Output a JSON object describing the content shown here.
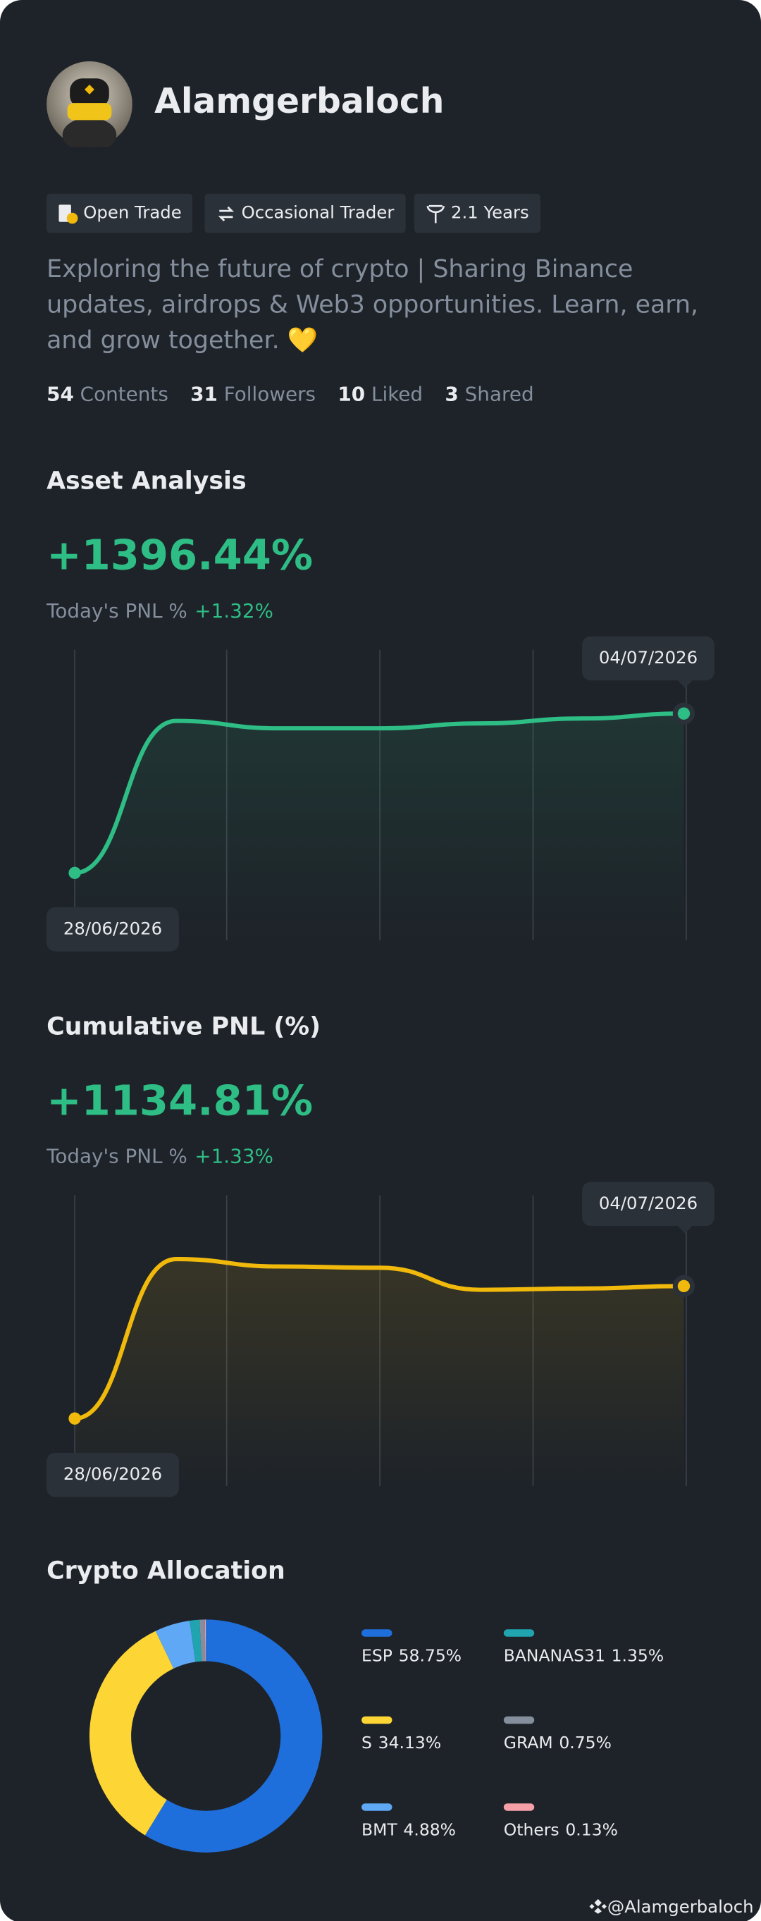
{
  "profile": {
    "name": "Alamgerbaloch",
    "tags": [
      "Open Trade",
      "Occasional Trader",
      "2.1 Years"
    ],
    "bio": "Exploring the future of crypto | Sharing Binance updates, airdrops & Web3 opportunities. Learn, earn, and grow together. 💛",
    "stats": [
      {
        "count": 54,
        "label": "Contents"
      },
      {
        "count": 31,
        "label": "Followers"
      },
      {
        "count": 10,
        "label": "Liked"
      },
      {
        "count": 3,
        "label": "Shared"
      }
    ]
  },
  "chart_data": [
    {
      "type": "line",
      "title": "Asset Analysis",
      "total": "+1396.44%",
      "today_label": "Today's PNL %",
      "today_value": "+1.32%",
      "categories": [
        "28/06/2026",
        null,
        null,
        null,
        null,
        null,
        "04/07/2026"
      ],
      "values": [
        0,
        1332,
        1267,
        1267,
        1310,
        1353,
        1396.44
      ],
      "color": "#2ebd85"
    },
    {
      "type": "line",
      "title": "Cumulative PNL (%)",
      "total": "+1134.81%",
      "today_label": "Today's PNL %",
      "today_value": "+1.33%",
      "categories": [
        "28/06/2026",
        null,
        null,
        null,
        null,
        null,
        "04/07/2026"
      ],
      "values": [
        0,
        1366,
        1303,
        1292,
        1103,
        1114,
        1134.81
      ],
      "color": "#f0b90b"
    },
    {
      "type": "pie",
      "title": "Crypto Allocation",
      "donut": true,
      "categories": [
        "ESP",
        "S",
        "BMT",
        "BANANAS31",
        "GRAM",
        "Others"
      ],
      "values": [
        58.75,
        34.13,
        4.88,
        1.35,
        0.75,
        0.13
      ],
      "value_labels": [
        "58.75%",
        "34.13%",
        "4.88%",
        "1.35%",
        "0.75%",
        "0.13%"
      ],
      "colors": [
        "#1e6fdc",
        "#fdd535",
        "#5fa8f5",
        "#1fa4b0",
        "#848e9c",
        "#f5a0a8"
      ]
    }
  ],
  "footer": "@Alamgerbaloch"
}
